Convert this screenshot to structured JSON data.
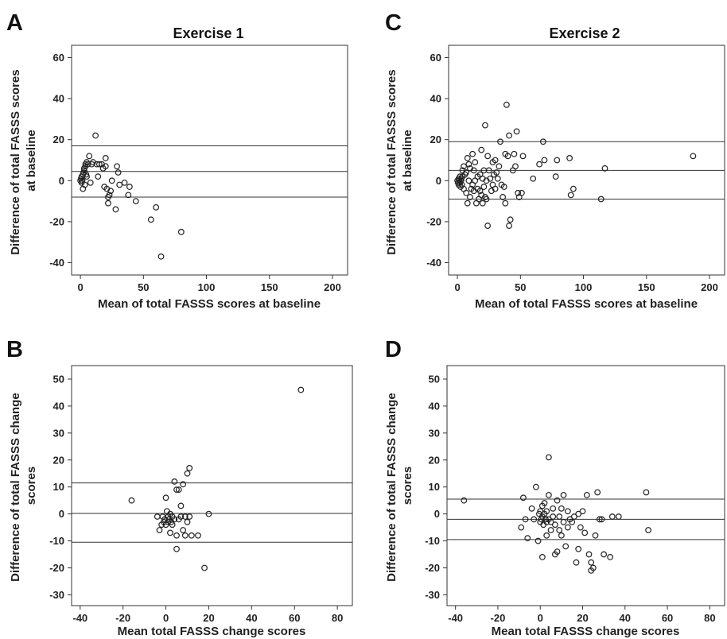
{
  "chart_data": [
    {
      "panel": "A",
      "type": "scatter",
      "title": "Exercise 1",
      "xlabel": "Mean of total FASSS scores at baseline",
      "ylabel_lines": [
        "Difference of total FASSS scores",
        "at baseline"
      ],
      "xlim": [
        -7,
        212
      ],
      "ylim": [
        -46,
        66
      ],
      "xticks": [
        0,
        50,
        100,
        150,
        200
      ],
      "yticks": [
        -40,
        -20,
        0,
        20,
        40,
        60
      ],
      "hlines": [
        17,
        4.5,
        -8
      ],
      "points": [
        [
          0,
          0
        ],
        [
          0.5,
          1
        ],
        [
          1,
          -1
        ],
        [
          1,
          2
        ],
        [
          1.5,
          0
        ],
        [
          2,
          3
        ],
        [
          2,
          -4
        ],
        [
          2.5,
          4
        ],
        [
          3,
          5
        ],
        [
          3,
          6
        ],
        [
          3.5,
          -2
        ],
        [
          4,
          7
        ],
        [
          4,
          8
        ],
        [
          4.5,
          3
        ],
        [
          5,
          9
        ],
        [
          5,
          2
        ],
        [
          6,
          8
        ],
        [
          7,
          12
        ],
        [
          8,
          -1
        ],
        [
          9,
          8
        ],
        [
          10,
          9
        ],
        [
          12,
          22
        ],
        [
          13,
          8
        ],
        [
          14,
          2
        ],
        [
          15,
          8
        ],
        [
          17,
          8
        ],
        [
          18,
          6
        ],
        [
          19,
          -3
        ],
        [
          20,
          11
        ],
        [
          20,
          7
        ],
        [
          21,
          -4
        ],
        [
          22,
          -8
        ],
        [
          22,
          -11
        ],
        [
          23,
          -7
        ],
        [
          24,
          -5
        ],
        [
          25,
          0
        ],
        [
          28,
          -14
        ],
        [
          29,
          7
        ],
        [
          30,
          4
        ],
        [
          31,
          -2
        ],
        [
          35,
          -1
        ],
        [
          38,
          -7
        ],
        [
          39,
          -3
        ],
        [
          44,
          -10
        ],
        [
          56,
          -19
        ],
        [
          60,
          -13
        ],
        [
          64,
          -37
        ],
        [
          80,
          -25
        ]
      ]
    },
    {
      "panel": "C",
      "type": "scatter",
      "title": "Exercise 2",
      "xlabel": "Mean of total FASSS scores at baseline",
      "ylabel_lines": [
        "Difference of total FASSS scores",
        "at baseline"
      ],
      "xlim": [
        -7,
        212
      ],
      "ylim": [
        -46,
        66
      ],
      "xticks": [
        0,
        50,
        100,
        150,
        200
      ],
      "yticks": [
        -40,
        -20,
        0,
        20,
        40,
        60
      ],
      "hlines": [
        19,
        5,
        -9
      ],
      "points": [
        [
          0,
          0
        ],
        [
          0.5,
          -1
        ],
        [
          1,
          1
        ],
        [
          1,
          -2
        ],
        [
          1.5,
          0
        ],
        [
          2,
          2
        ],
        [
          2,
          -1
        ],
        [
          2.5,
          -3
        ],
        [
          3,
          0
        ],
        [
          3,
          1
        ],
        [
          3.5,
          -2
        ],
        [
          4,
          2
        ],
        [
          4,
          5
        ],
        [
          5,
          7
        ],
        [
          5,
          -4
        ],
        [
          6,
          3
        ],
        [
          7,
          -6
        ],
        [
          7,
          4
        ],
        [
          8,
          -11
        ],
        [
          8,
          11
        ],
        [
          9,
          8
        ],
        [
          9,
          0
        ],
        [
          10,
          -8
        ],
        [
          10,
          6
        ],
        [
          11,
          -4
        ],
        [
          12,
          13
        ],
        [
          12,
          -2
        ],
        [
          13,
          -5
        ],
        [
          13,
          5
        ],
        [
          14,
          9
        ],
        [
          14,
          0
        ],
        [
          15,
          -11
        ],
        [
          16,
          2
        ],
        [
          16,
          -4
        ],
        [
          17,
          -9
        ],
        [
          18,
          -5
        ],
        [
          18,
          3
        ],
        [
          19,
          15
        ],
        [
          19,
          -7
        ],
        [
          20,
          -11
        ],
        [
          20,
          1
        ],
        [
          21,
          -3
        ],
        [
          21,
          5
        ],
        [
          22,
          27
        ],
        [
          22,
          -8
        ],
        [
          23,
          -9
        ],
        [
          23,
          0
        ],
        [
          24,
          -22
        ],
        [
          24,
          12
        ],
        [
          25,
          5
        ],
        [
          26,
          1
        ],
        [
          27,
          -5
        ],
        [
          28,
          9
        ],
        [
          28,
          -2
        ],
        [
          29,
          3
        ],
        [
          30,
          -4
        ],
        [
          30,
          10
        ],
        [
          31,
          4
        ],
        [
          32,
          1
        ],
        [
          33,
          7
        ],
        [
          34,
          19
        ],
        [
          35,
          -2
        ],
        [
          36,
          -8
        ],
        [
          37,
          -3
        ],
        [
          38,
          13
        ],
        [
          38,
          -11
        ],
        [
          39,
          37
        ],
        [
          40,
          12
        ],
        [
          41,
          22
        ],
        [
          41,
          -22
        ],
        [
          42,
          -19
        ],
        [
          44,
          5
        ],
        [
          45,
          13
        ],
        [
          46,
          7
        ],
        [
          47,
          24
        ],
        [
          48,
          -6
        ],
        [
          49,
          -8
        ],
        [
          51,
          -6
        ],
        [
          52,
          12
        ],
        [
          60,
          1
        ],
        [
          65,
          8
        ],
        [
          68,
          19
        ],
        [
          69,
          10
        ],
        [
          78,
          2
        ],
        [
          79,
          10
        ],
        [
          89,
          11
        ],
        [
          90,
          -7
        ],
        [
          92,
          -4
        ],
        [
          114,
          -9
        ],
        [
          117,
          6
        ],
        [
          187,
          12
        ]
      ]
    },
    {
      "panel": "B",
      "type": "scatter",
      "title": "",
      "xlabel": "Mean total FASSS change scores",
      "ylabel_lines": [
        "Difference of total FASSS change",
        "scores"
      ],
      "xlim": [
        -44,
        87
      ],
      "ylim": [
        -34,
        55
      ],
      "xticks": [
        -40,
        -20,
        0,
        20,
        40,
        60,
        80
      ],
      "yticks": [
        -30,
        -20,
        -10,
        0,
        10,
        20,
        30,
        40,
        50
      ],
      "hlines": [
        11.5,
        0.2,
        -10.5
      ],
      "points": [
        [
          -16,
          5
        ],
        [
          -4,
          -1
        ],
        [
          -3,
          -6
        ],
        [
          -2,
          -4
        ],
        [
          -1.5,
          -1
        ],
        [
          -1,
          -3
        ],
        [
          -0.5,
          -2
        ],
        [
          0,
          6
        ],
        [
          0,
          -4
        ],
        [
          0.5,
          1
        ],
        [
          1,
          -1
        ],
        [
          1,
          -3
        ],
        [
          1.5,
          -2
        ],
        [
          2,
          0
        ],
        [
          2,
          -7
        ],
        [
          2.5,
          -3
        ],
        [
          3,
          -1
        ],
        [
          3,
          -4
        ],
        [
          4,
          -2
        ],
        [
          4,
          12
        ],
        [
          5,
          -8
        ],
        [
          5,
          -13
        ],
        [
          5,
          9
        ],
        [
          6,
          9
        ],
        [
          6,
          -2
        ],
        [
          7,
          3
        ],
        [
          7,
          -1
        ],
        [
          8,
          11
        ],
        [
          8,
          -6
        ],
        [
          9,
          -1
        ],
        [
          9,
          -8
        ],
        [
          10,
          15
        ],
        [
          10,
          -3
        ],
        [
          11,
          17
        ],
        [
          11,
          -1
        ],
        [
          12,
          -8
        ],
        [
          15,
          -8
        ],
        [
          18,
          -20
        ],
        [
          20,
          0
        ],
        [
          63,
          46
        ]
      ]
    },
    {
      "panel": "D",
      "type": "scatter",
      "title": "",
      "xlabel": "Mean total FASSS change scores",
      "ylabel_lines": [
        "Difference of total FASSS change",
        "scores"
      ],
      "xlim": [
        -44,
        87
      ],
      "ylim": [
        -34,
        55
      ],
      "xticks": [
        -40,
        -20,
        0,
        20,
        40,
        60,
        80
      ],
      "yticks": [
        -30,
        -20,
        -10,
        0,
        10,
        20,
        30,
        40,
        50
      ],
      "hlines": [
        5.5,
        -2,
        -9.5
      ],
      "points": [
        [
          -36,
          5
        ],
        [
          -9,
          -5
        ],
        [
          -8,
          6
        ],
        [
          -7,
          -2
        ],
        [
          -6,
          -9
        ],
        [
          -4,
          2
        ],
        [
          -3,
          -2
        ],
        [
          -2,
          10
        ],
        [
          -1,
          -10
        ],
        [
          -0.5,
          0
        ],
        [
          0,
          -3
        ],
        [
          0,
          1
        ],
        [
          0.5,
          -2
        ],
        [
          1,
          -1
        ],
        [
          1,
          3
        ],
        [
          1,
          -16
        ],
        [
          1.5,
          -4
        ],
        [
          2,
          0
        ],
        [
          2,
          4
        ],
        [
          2.5,
          -2
        ],
        [
          3,
          -3
        ],
        [
          3,
          1
        ],
        [
          3,
          -8
        ],
        [
          4,
          21
        ],
        [
          4,
          -2
        ],
        [
          4,
          7
        ],
        [
          5,
          -3
        ],
        [
          5,
          -6
        ],
        [
          6,
          2
        ],
        [
          6,
          -1
        ],
        [
          7,
          -4
        ],
        [
          7,
          -15
        ],
        [
          8,
          -14
        ],
        [
          8,
          5
        ],
        [
          9,
          -1
        ],
        [
          9,
          -6
        ],
        [
          10,
          2
        ],
        [
          10,
          -8
        ],
        [
          11,
          7
        ],
        [
          11,
          -3
        ],
        [
          12,
          -12
        ],
        [
          13,
          1
        ],
        [
          13,
          -5
        ],
        [
          14,
          -2
        ],
        [
          15,
          -3
        ],
        [
          16,
          -1
        ],
        [
          17,
          -18
        ],
        [
          18,
          -13
        ],
        [
          18,
          0
        ],
        [
          19,
          -5
        ],
        [
          20,
          1
        ],
        [
          21,
          -7
        ],
        [
          22,
          7
        ],
        [
          23,
          -15
        ],
        [
          24,
          -18
        ],
        [
          24,
          -21
        ],
        [
          25,
          -20
        ],
        [
          26,
          -8
        ],
        [
          27,
          8
        ],
        [
          28,
          -2
        ],
        [
          29,
          -2
        ],
        [
          30,
          -15
        ],
        [
          33,
          -16
        ],
        [
          34,
          -1
        ],
        [
          37,
          -1
        ],
        [
          50,
          8
        ],
        [
          51,
          -6
        ]
      ]
    }
  ]
}
